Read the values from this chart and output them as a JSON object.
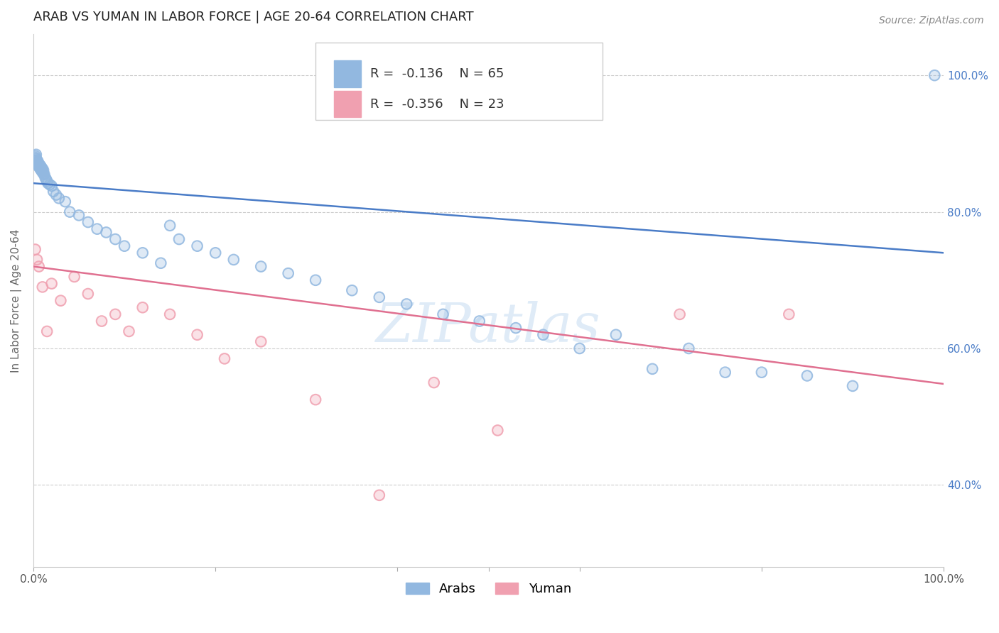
{
  "title": "ARAB VS YUMAN IN LABOR FORCE | AGE 20-64 CORRELATION CHART",
  "source": "Source: ZipAtlas.com",
  "ylabel": "In Labor Force | Age 20-64",
  "right_yticks": [
    "100.0%",
    "80.0%",
    "60.0%",
    "40.0%"
  ],
  "right_ytick_vals": [
    1.0,
    0.8,
    0.6,
    0.4
  ],
  "watermark": "ZIPatlas",
  "legend_arab_R": "-0.136",
  "legend_arab_N": "65",
  "legend_yuman_R": "-0.356",
  "legend_yuman_N": "23",
  "arab_color": "#92b8e0",
  "yuman_color": "#f0a0b0",
  "arab_line_color": "#4a7cc7",
  "yuman_line_color": "#e07090",
  "background_color": "#ffffff",
  "grid_color": "#cccccc",
  "arab_scatter_x": [
    0.001,
    0.002,
    0.002,
    0.003,
    0.003,
    0.004,
    0.004,
    0.005,
    0.005,
    0.006,
    0.006,
    0.007,
    0.007,
    0.008,
    0.008,
    0.009,
    0.009,
    0.01,
    0.01,
    0.011,
    0.011,
    0.012,
    0.013,
    0.014,
    0.015,
    0.016,
    0.018,
    0.02,
    0.022,
    0.025,
    0.028,
    0.035,
    0.04,
    0.05,
    0.06,
    0.07,
    0.08,
    0.09,
    0.1,
    0.12,
    0.14,
    0.15,
    0.16,
    0.18,
    0.2,
    0.22,
    0.25,
    0.28,
    0.31,
    0.35,
    0.38,
    0.41,
    0.45,
    0.49,
    0.53,
    0.56,
    0.6,
    0.64,
    0.68,
    0.72,
    0.76,
    0.8,
    0.85,
    0.9,
    0.99
  ],
  "arab_scatter_y": [
    0.88,
    0.875,
    0.882,
    0.878,
    0.884,
    0.872,
    0.876,
    0.868,
    0.874,
    0.866,
    0.87,
    0.864,
    0.869,
    0.862,
    0.867,
    0.86,
    0.865,
    0.858,
    0.863,
    0.856,
    0.861,
    0.855,
    0.85,
    0.848,
    0.845,
    0.842,
    0.84,
    0.838,
    0.83,
    0.825,
    0.82,
    0.815,
    0.8,
    0.795,
    0.785,
    0.775,
    0.77,
    0.76,
    0.75,
    0.74,
    0.725,
    0.78,
    0.76,
    0.75,
    0.74,
    0.73,
    0.72,
    0.71,
    0.7,
    0.685,
    0.675,
    0.665,
    0.65,
    0.64,
    0.63,
    0.62,
    0.6,
    0.62,
    0.57,
    0.6,
    0.565,
    0.565,
    0.56,
    0.545,
    1.0
  ],
  "yuman_scatter_x": [
    0.002,
    0.004,
    0.006,
    0.01,
    0.015,
    0.02,
    0.03,
    0.045,
    0.06,
    0.075,
    0.09,
    0.105,
    0.12,
    0.15,
    0.18,
    0.21,
    0.25,
    0.31,
    0.38,
    0.44,
    0.51,
    0.71,
    0.83
  ],
  "yuman_scatter_y": [
    0.745,
    0.73,
    0.72,
    0.69,
    0.625,
    0.695,
    0.67,
    0.705,
    0.68,
    0.64,
    0.65,
    0.625,
    0.66,
    0.65,
    0.62,
    0.585,
    0.61,
    0.525,
    0.385,
    0.55,
    0.48,
    0.65,
    0.65
  ],
  "arab_trendline_x": [
    0.0,
    1.0
  ],
  "arab_trendline_y": [
    0.842,
    0.74
  ],
  "yuman_trendline_x": [
    0.0,
    1.0
  ],
  "yuman_trendline_y": [
    0.72,
    0.548
  ],
  "xlim": [
    0.0,
    1.0
  ],
  "ylim": [
    0.28,
    1.06
  ],
  "title_fontsize": 13,
  "source_fontsize": 10,
  "axis_label_fontsize": 11,
  "tick_fontsize": 11,
  "legend_fontsize": 13,
  "watermark_fontsize": 55,
  "scatter_size": 110,
  "scatter_alpha": 0.6,
  "scatter_linewidth": 1.5
}
